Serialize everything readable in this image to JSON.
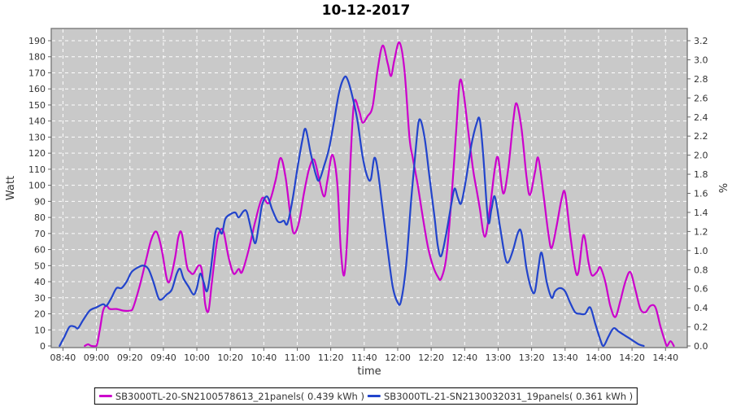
{
  "styles": {
    "plot_bg": "#C9C9C9",
    "grid_color": "#FFFFFF",
    "plot_border": "#7A7A7A",
    "tick_color": "#666666",
    "text_color": "#333333",
    "title_color": "#000000"
  },
  "chart_data": {
    "type": "line",
    "title": "10-12-2017",
    "grid": true,
    "legend_position": "bottom",
    "x_axis": {
      "label": "time",
      "range": [
        "08:33",
        "14:53"
      ],
      "ticks": [
        "08:40",
        "09:00",
        "09:20",
        "09:40",
        "10:00",
        "10:20",
        "10:40",
        "11:00",
        "11:20",
        "11:40",
        "12:00",
        "12:20",
        "12:40",
        "13:00",
        "13:20",
        "13:40",
        "14:00",
        "14:20",
        "14:40"
      ]
    },
    "y_axis_left": {
      "label": "Watt",
      "min": 0,
      "max": 190,
      "tick_step": 10
    },
    "y_axis_right": {
      "label": "%",
      "min": 0.0,
      "max": 3.2,
      "tick_step": 0.2
    },
    "series": [
      {
        "name": "SB3000TL-20-SN2100578613_21panels( 0.439 kWh )",
        "color": "#CC00CC",
        "axis": "left",
        "points": [
          [
            "08:53",
            0
          ],
          [
            "08:55",
            1
          ],
          [
            "08:57",
            0
          ],
          [
            "09:00",
            0
          ],
          [
            "09:02",
            10
          ],
          [
            "09:04",
            22
          ],
          [
            "09:06",
            25
          ],
          [
            "09:08",
            23
          ],
          [
            "09:12",
            23
          ],
          [
            "09:16",
            22
          ],
          [
            "09:20",
            22
          ],
          [
            "09:22",
            24
          ],
          [
            "09:26",
            38
          ],
          [
            "09:30",
            55
          ],
          [
            "09:33",
            67
          ],
          [
            "09:36",
            71
          ],
          [
            "09:39",
            60
          ],
          [
            "09:42",
            42
          ],
          [
            "09:44",
            41
          ],
          [
            "09:47",
            55
          ],
          [
            "09:49",
            68
          ],
          [
            "09:51",
            70
          ],
          [
            "09:54",
            50
          ],
          [
            "09:56",
            46
          ],
          [
            "09:58",
            45
          ],
          [
            "10:01",
            50
          ],
          [
            "10:03",
            47
          ],
          [
            "10:05",
            26
          ],
          [
            "10:07",
            22
          ],
          [
            "10:09",
            40
          ],
          [
            "10:12",
            65
          ],
          [
            "10:14",
            72
          ],
          [
            "10:16",
            71
          ],
          [
            "10:19",
            55
          ],
          [
            "10:22",
            45
          ],
          [
            "10:25",
            48
          ],
          [
            "10:27",
            46
          ],
          [
            "10:31",
            60
          ],
          [
            "10:35",
            78
          ],
          [
            "10:39",
            92
          ],
          [
            "10:43",
            89
          ],
          [
            "10:47",
            103
          ],
          [
            "10:50",
            117
          ],
          [
            "10:53",
            105
          ],
          [
            "10:56",
            80
          ],
          [
            "10:58",
            70
          ],
          [
            "11:01",
            77
          ],
          [
            "11:04",
            95
          ],
          [
            "11:07",
            110
          ],
          [
            "11:10",
            116
          ],
          [
            "11:13",
            104
          ],
          [
            "11:16",
            93
          ],
          [
            "11:18",
            103
          ],
          [
            "11:21",
            119
          ],
          [
            "11:24",
            100
          ],
          [
            "11:26",
            60
          ],
          [
            "11:28",
            44
          ],
          [
            "11:30",
            70
          ],
          [
            "11:32",
            120
          ],
          [
            "11:34",
            152
          ],
          [
            "11:37",
            146
          ],
          [
            "11:39",
            139
          ],
          [
            "11:42",
            143
          ],
          [
            "11:45",
            149
          ],
          [
            "11:48",
            172
          ],
          [
            "11:51",
            187
          ],
          [
            "11:54",
            176
          ],
          [
            "11:56",
            168
          ],
          [
            "11:58",
            178
          ],
          [
            "12:01",
            189
          ],
          [
            "12:04",
            172
          ],
          [
            "12:07",
            130
          ],
          [
            "12:09",
            117
          ],
          [
            "12:12",
            100
          ],
          [
            "12:15",
            80
          ],
          [
            "12:18",
            62
          ],
          [
            "12:21",
            50
          ],
          [
            "12:24",
            43
          ],
          [
            "12:26",
            42
          ],
          [
            "12:29",
            55
          ],
          [
            "12:32",
            90
          ],
          [
            "12:35",
            135
          ],
          [
            "12:37",
            164
          ],
          [
            "12:39",
            160
          ],
          [
            "12:42",
            135
          ],
          [
            "12:45",
            110
          ],
          [
            "12:47",
            98
          ],
          [
            "12:49",
            86
          ],
          [
            "12:52",
            68
          ],
          [
            "12:55",
            85
          ],
          [
            "12:58",
            110
          ],
          [
            "13:00",
            117
          ],
          [
            "13:03",
            95
          ],
          [
            "13:06",
            110
          ],
          [
            "13:09",
            140
          ],
          [
            "13:11",
            151
          ],
          [
            "13:14",
            135
          ],
          [
            "13:17",
            105
          ],
          [
            "13:19",
            94
          ],
          [
            "13:22",
            108
          ],
          [
            "13:24",
            117
          ],
          [
            "13:27",
            95
          ],
          [
            "13:30",
            70
          ],
          [
            "13:32",
            61
          ],
          [
            "13:35",
            75
          ],
          [
            "13:38",
            92
          ],
          [
            "13:40",
            95
          ],
          [
            "13:43",
            70
          ],
          [
            "13:46",
            48
          ],
          [
            "13:48",
            46
          ],
          [
            "13:51",
            69
          ],
          [
            "13:54",
            52
          ],
          [
            "13:56",
            44
          ],
          [
            "13:59",
            46
          ],
          [
            "14:01",
            49
          ],
          [
            "14:04",
            40
          ],
          [
            "14:07",
            25
          ],
          [
            "14:10",
            18
          ],
          [
            "14:13",
            28
          ],
          [
            "14:16",
            40
          ],
          [
            "14:19",
            46
          ],
          [
            "14:22",
            35
          ],
          [
            "14:25",
            23
          ],
          [
            "14:28",
            21
          ],
          [
            "14:31",
            25
          ],
          [
            "14:34",
            24
          ],
          [
            "14:37",
            12
          ],
          [
            "14:40",
            2
          ],
          [
            "14:41",
            0
          ],
          [
            "14:43",
            3
          ],
          [
            "14:45",
            0
          ]
        ]
      },
      {
        "name": "SB3000TL-21-SN2130032031_19panels( 0.361 kWh )",
        "color": "#2244CC",
        "axis": "left",
        "points": [
          [
            "08:38",
            0
          ],
          [
            "08:41",
            6
          ],
          [
            "08:44",
            12
          ],
          [
            "08:47",
            12
          ],
          [
            "08:49",
            11
          ],
          [
            "08:52",
            16
          ],
          [
            "08:56",
            22
          ],
          [
            "09:00",
            24
          ],
          [
            "09:04",
            26
          ],
          [
            "09:06",
            25
          ],
          [
            "09:09",
            30
          ],
          [
            "09:12",
            36
          ],
          [
            "09:15",
            36
          ],
          [
            "09:18",
            40
          ],
          [
            "09:21",
            46
          ],
          [
            "09:25",
            49
          ],
          [
            "09:28",
            50
          ],
          [
            "09:31",
            48
          ],
          [
            "09:34",
            40
          ],
          [
            "09:37",
            30
          ],
          [
            "09:39",
            29
          ],
          [
            "09:42",
            32
          ],
          [
            "09:45",
            35
          ],
          [
            "09:48",
            45
          ],
          [
            "09:50",
            48
          ],
          [
            "09:52",
            42
          ],
          [
            "09:55",
            37
          ],
          [
            "09:58",
            32
          ],
          [
            "10:00",
            36
          ],
          [
            "10:02",
            45
          ],
          [
            "10:04",
            40
          ],
          [
            "10:06",
            34
          ],
          [
            "10:08",
            45
          ],
          [
            "10:11",
            70
          ],
          [
            "10:13",
            73
          ],
          [
            "10:15",
            70
          ],
          [
            "10:17",
            79
          ],
          [
            "10:20",
            82
          ],
          [
            "10:23",
            83
          ],
          [
            "10:25",
            80
          ],
          [
            "10:28",
            84
          ],
          [
            "10:30",
            83
          ],
          [
            "10:33",
            70
          ],
          [
            "10:35",
            64
          ],
          [
            "10:37",
            75
          ],
          [
            "10:39",
            88
          ],
          [
            "10:42",
            93
          ],
          [
            "10:45",
            85
          ],
          [
            "10:48",
            78
          ],
          [
            "10:50",
            77
          ],
          [
            "10:52",
            78
          ],
          [
            "10:54",
            76
          ],
          [
            "10:57",
            90
          ],
          [
            "11:00",
            110
          ],
          [
            "11:03",
            128
          ],
          [
            "11:05",
            135
          ],
          [
            "11:08",
            120
          ],
          [
            "11:11",
            107
          ],
          [
            "11:13",
            103
          ],
          [
            "11:16",
            112
          ],
          [
            "11:19",
            123
          ],
          [
            "11:22",
            140
          ],
          [
            "11:25",
            158
          ],
          [
            "11:28",
            167
          ],
          [
            "11:30",
            166
          ],
          [
            "11:33",
            155
          ],
          [
            "11:36",
            140
          ],
          [
            "11:39",
            118
          ],
          [
            "11:42",
            105
          ],
          [
            "11:44",
            104
          ],
          [
            "11:46",
            117
          ],
          [
            "11:48",
            110
          ],
          [
            "11:51",
            85
          ],
          [
            "11:54",
            60
          ],
          [
            "11:57",
            37
          ],
          [
            "12:00",
            27
          ],
          [
            "12:02",
            28
          ],
          [
            "12:05",
            50
          ],
          [
            "12:08",
            90
          ],
          [
            "12:11",
            125
          ],
          [
            "12:13",
            141
          ],
          [
            "12:16",
            130
          ],
          [
            "12:19",
            105
          ],
          [
            "12:22",
            80
          ],
          [
            "12:24",
            62
          ],
          [
            "12:26",
            56
          ],
          [
            "12:29",
            70
          ],
          [
            "12:32",
            88
          ],
          [
            "12:34",
            98
          ],
          [
            "12:36",
            92
          ],
          [
            "12:38",
            89
          ],
          [
            "12:41",
            105
          ],
          [
            "12:44",
            125
          ],
          [
            "12:47",
            138
          ],
          [
            "12:49",
            141
          ],
          [
            "12:51",
            120
          ],
          [
            "12:54",
            78
          ],
          [
            "12:56",
            85
          ],
          [
            "12:58",
            93
          ],
          [
            "13:01",
            75
          ],
          [
            "13:04",
            56
          ],
          [
            "13:06",
            52
          ],
          [
            "13:09",
            60
          ],
          [
            "13:12",
            71
          ],
          [
            "13:14",
            70
          ],
          [
            "13:17",
            48
          ],
          [
            "13:20",
            35
          ],
          [
            "13:22",
            34
          ],
          [
            "13:24",
            48
          ],
          [
            "13:26",
            58
          ],
          [
            "13:29",
            40
          ],
          [
            "13:32",
            30
          ],
          [
            "13:34",
            34
          ],
          [
            "13:37",
            36
          ],
          [
            "13:40",
            34
          ],
          [
            "13:43",
            27
          ],
          [
            "13:46",
            21
          ],
          [
            "13:49",
            20
          ],
          [
            "13:52",
            20
          ],
          [
            "13:55",
            24
          ],
          [
            "13:58",
            14
          ],
          [
            "14:01",
            4
          ],
          [
            "14:03",
            0
          ],
          [
            "14:06",
            6
          ],
          [
            "14:09",
            11
          ],
          [
            "14:12",
            9
          ],
          [
            "14:15",
            7
          ],
          [
            "14:18",
            5
          ],
          [
            "14:21",
            3
          ],
          [
            "14:24",
            1
          ],
          [
            "14:27",
            0
          ]
        ]
      }
    ]
  }
}
